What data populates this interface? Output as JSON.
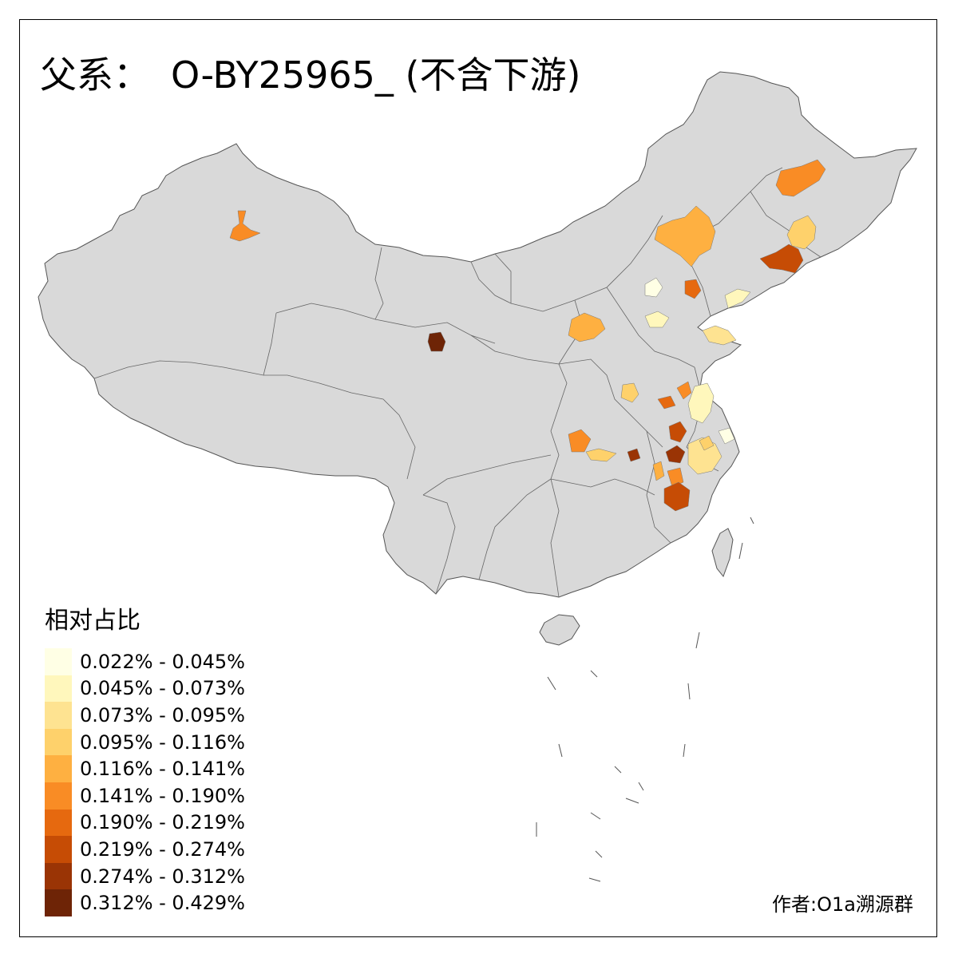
{
  "title": {
    "prefix": "父系：",
    "main": "O-BY25965_ (不含下游)"
  },
  "legend": {
    "title": "相对占比",
    "items": [
      {
        "label": "0.022% - 0.045%",
        "color": "#FFFFE5"
      },
      {
        "label": "0.045% - 0.073%",
        "color": "#FFF7BC"
      },
      {
        "label": "0.073% - 0.095%",
        "color": "#FEE391"
      },
      {
        "label": "0.095% - 0.116%",
        "color": "#FED16B"
      },
      {
        "label": "0.116% - 0.141%",
        "color": "#FEB041"
      },
      {
        "label": "0.141% - 0.190%",
        "color": "#F98C25"
      },
      {
        "label": "0.190% - 0.219%",
        "color": "#E6690F"
      },
      {
        "label": "0.219% - 0.274%",
        "color": "#C64C05"
      },
      {
        "label": "0.274% - 0.312%",
        "color": "#9A3405"
      },
      {
        "label": "0.312% - 0.429%",
        "color": "#6E2406"
      }
    ]
  },
  "credit": "作者:O1a溯源群",
  "map": {
    "land_color": "#D9D9D9",
    "border_color": "#555555",
    "ocean_color": "#FFFFFF"
  }
}
